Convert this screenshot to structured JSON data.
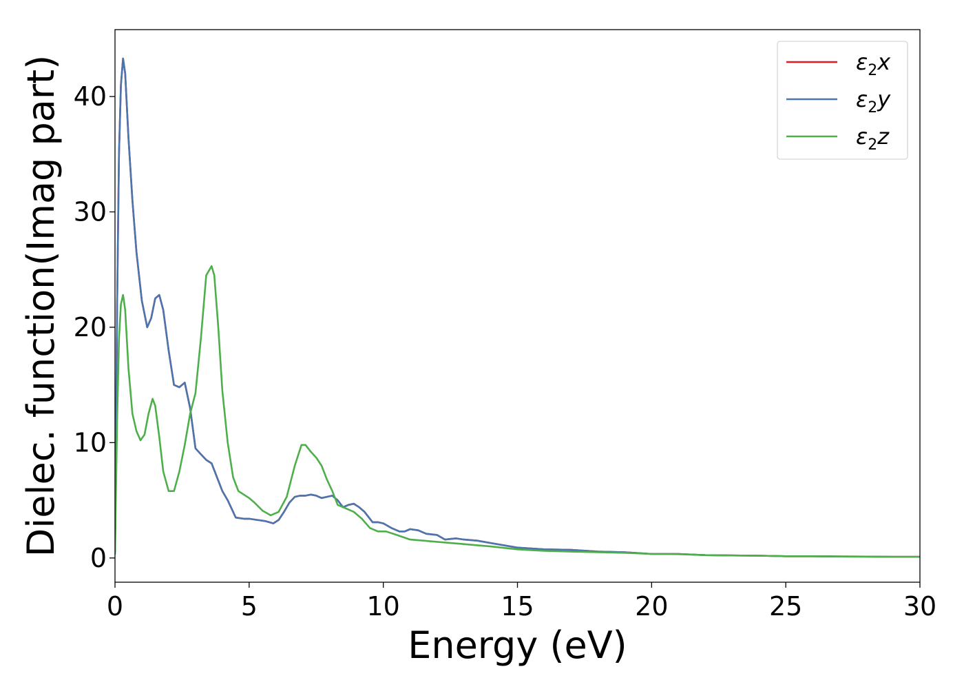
{
  "chart_data": {
    "type": "line",
    "xlabel": "Energy (eV)",
    "ylabel": "Dielec. function(Imag part)",
    "xlim": [
      0,
      30
    ],
    "ylim": [
      -2.1,
      45.8
    ],
    "xticks": [
      "0",
      "5",
      "10",
      "15",
      "20",
      "25",
      "30"
    ],
    "yticks": [
      "0",
      "10",
      "20",
      "30",
      "40"
    ],
    "grid": false,
    "legend_position": "top-right",
    "series": [
      {
        "name": "ε2x",
        "legend": {
          "base": "ε",
          "sub": "2",
          "suffix": "x"
        },
        "color": "#e41a1c",
        "x": [
          0,
          0.08,
          0.15,
          0.22,
          0.3,
          0.38,
          0.5,
          0.65,
          0.8,
          1.0,
          1.2,
          1.35,
          1.5,
          1.65,
          1.8,
          2.0,
          2.2,
          2.4,
          2.6,
          2.8,
          3.0,
          3.2,
          3.4,
          3.6,
          3.8,
          4.0,
          4.2,
          4.5,
          4.8,
          5.0,
          5.3,
          5.6,
          5.9,
          6.1,
          6.3,
          6.5,
          6.7,
          6.9,
          7.1,
          7.3,
          7.5,
          7.7,
          7.9,
          8.1,
          8.3,
          8.5,
          8.7,
          8.9,
          9.1,
          9.3,
          9.6,
          9.8,
          10.0,
          10.3,
          10.6,
          10.8,
          11.0,
          11.3,
          11.6,
          12.0,
          12.3,
          12.7,
          13.0,
          13.5,
          14.0,
          15.0,
          16.0,
          17.0,
          18.0,
          19.0,
          20.0,
          21.0,
          22.0,
          23.0,
          24.0,
          25.0,
          26.0,
          27.0,
          28.0,
          29.0,
          30.0
        ],
        "y": [
          0.5,
          22,
          35,
          41,
          43.3,
          42,
          36.5,
          31,
          26.5,
          22.3,
          20.0,
          20.8,
          22.5,
          22.8,
          21.5,
          18.0,
          15.0,
          14.8,
          15.2,
          13.0,
          9.5,
          9.0,
          8.5,
          8.2,
          7.0,
          5.8,
          5.0,
          3.5,
          3.4,
          3.4,
          3.3,
          3.2,
          3.0,
          3.3,
          4.0,
          4.8,
          5.3,
          5.4,
          5.4,
          5.5,
          5.4,
          5.2,
          5.3,
          5.4,
          5.0,
          4.4,
          4.6,
          4.7,
          4.4,
          4.0,
          3.1,
          3.1,
          3.0,
          2.6,
          2.3,
          2.3,
          2.5,
          2.4,
          2.1,
          2.0,
          1.6,
          1.7,
          1.6,
          1.5,
          1.3,
          0.9,
          0.75,
          0.7,
          0.55,
          0.5,
          0.35,
          0.35,
          0.25,
          0.22,
          0.2,
          0.15,
          0.15,
          0.13,
          0.12,
          0.1,
          0.1
        ]
      },
      {
        "name": "ε2y",
        "legend": {
          "base": "ε",
          "sub": "2",
          "suffix": "y"
        },
        "color": "#4a76b0",
        "x": [
          0,
          0.08,
          0.15,
          0.22,
          0.3,
          0.38,
          0.5,
          0.65,
          0.8,
          1.0,
          1.2,
          1.35,
          1.5,
          1.65,
          1.8,
          2.0,
          2.2,
          2.4,
          2.6,
          2.8,
          3.0,
          3.2,
          3.4,
          3.6,
          3.8,
          4.0,
          4.2,
          4.5,
          4.8,
          5.0,
          5.3,
          5.6,
          5.9,
          6.1,
          6.3,
          6.5,
          6.7,
          6.9,
          7.1,
          7.3,
          7.5,
          7.7,
          7.9,
          8.1,
          8.3,
          8.5,
          8.7,
          8.9,
          9.1,
          9.3,
          9.6,
          9.8,
          10.0,
          10.3,
          10.6,
          10.8,
          11.0,
          11.3,
          11.6,
          12.0,
          12.3,
          12.7,
          13.0,
          13.5,
          14.0,
          15.0,
          16.0,
          17.0,
          18.0,
          19.0,
          20.0,
          21.0,
          22.0,
          23.0,
          24.0,
          25.0,
          26.0,
          27.0,
          28.0,
          29.0,
          30.0
        ],
        "y": [
          0.5,
          22,
          35,
          41,
          43.3,
          42,
          36.5,
          31,
          26.5,
          22.3,
          20.0,
          20.8,
          22.5,
          22.8,
          21.5,
          18.0,
          15.0,
          14.8,
          15.2,
          13.0,
          9.5,
          9.0,
          8.5,
          8.2,
          7.0,
          5.8,
          5.0,
          3.5,
          3.4,
          3.4,
          3.3,
          3.2,
          3.0,
          3.3,
          4.0,
          4.8,
          5.3,
          5.4,
          5.4,
          5.5,
          5.4,
          5.2,
          5.3,
          5.4,
          5.0,
          4.4,
          4.6,
          4.7,
          4.4,
          4.0,
          3.1,
          3.1,
          3.0,
          2.6,
          2.3,
          2.3,
          2.5,
          2.4,
          2.1,
          2.0,
          1.6,
          1.7,
          1.6,
          1.5,
          1.3,
          0.9,
          0.75,
          0.7,
          0.55,
          0.5,
          0.35,
          0.35,
          0.25,
          0.22,
          0.2,
          0.15,
          0.15,
          0.13,
          0.12,
          0.1,
          0.1
        ]
      },
      {
        "name": "ε2z",
        "legend": {
          "base": "ε",
          "sub": "2",
          "suffix": "z"
        },
        "color": "#4daf4a",
        "x": [
          0,
          0.08,
          0.15,
          0.22,
          0.3,
          0.38,
          0.5,
          0.65,
          0.8,
          0.95,
          1.1,
          1.25,
          1.4,
          1.5,
          1.65,
          1.8,
          2.0,
          2.2,
          2.4,
          2.6,
          2.8,
          3.0,
          3.2,
          3.4,
          3.6,
          3.7,
          3.85,
          4.0,
          4.2,
          4.4,
          4.6,
          4.8,
          5.0,
          5.2,
          5.5,
          5.8,
          6.1,
          6.4,
          6.7,
          6.95,
          7.1,
          7.3,
          7.5,
          7.7,
          7.9,
          8.1,
          8.3,
          8.6,
          8.9,
          9.2,
          9.5,
          9.8,
          10.1,
          10.5,
          11.0,
          11.5,
          12.0,
          12.5,
          13.0,
          13.5,
          14.0,
          15.0,
          16.0,
          17.0,
          18.0,
          19.0,
          20.0,
          21.0,
          22.0,
          23.0,
          24.0,
          25.0,
          26.0,
          27.0,
          28.0,
          29.0,
          30.0
        ],
        "y": [
          0.3,
          12,
          19,
          22,
          22.8,
          21.5,
          16.5,
          12.5,
          11.0,
          10.2,
          10.7,
          12.5,
          13.8,
          13.2,
          10.5,
          7.5,
          5.8,
          5.8,
          7.5,
          9.8,
          12.5,
          14.3,
          19,
          24.5,
          25.3,
          24.5,
          20.0,
          14.5,
          10.0,
          7.0,
          5.8,
          5.5,
          5.2,
          4.8,
          4.1,
          3.7,
          4.0,
          5.3,
          8.0,
          9.8,
          9.8,
          9.2,
          8.7,
          8.0,
          6.8,
          5.8,
          4.6,
          4.3,
          4.0,
          3.4,
          2.6,
          2.3,
          2.3,
          2.0,
          1.6,
          1.5,
          1.4,
          1.3,
          1.2,
          1.1,
          1.0,
          0.75,
          0.62,
          0.55,
          0.5,
          0.45,
          0.35,
          0.33,
          0.25,
          0.22,
          0.2,
          0.15,
          0.15,
          0.13,
          0.12,
          0.1,
          0.1
        ]
      }
    ]
  }
}
